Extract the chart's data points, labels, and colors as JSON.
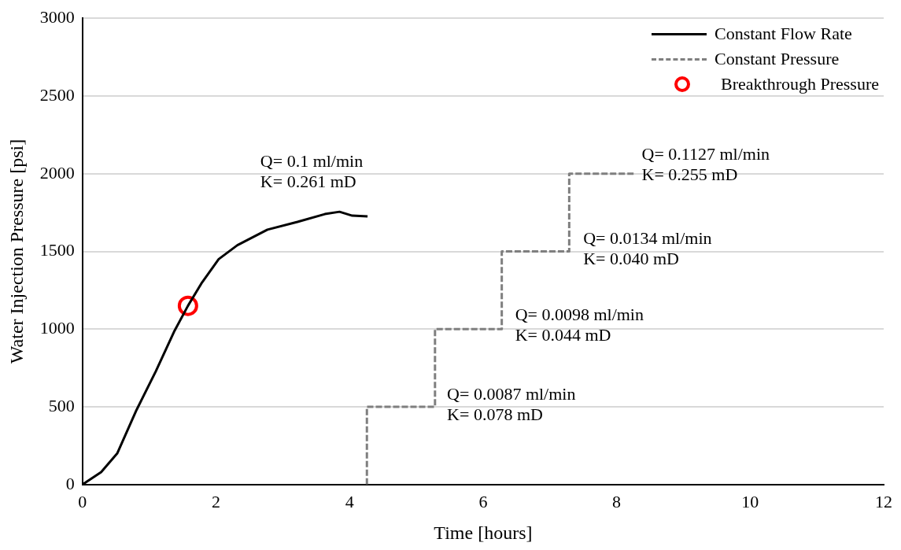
{
  "chart_data": {
    "type": "line",
    "xlabel": "Time [hours]",
    "ylabel": "Water Injection Pressure [psi]",
    "xlim": [
      0,
      12
    ],
    "xticks": [
      0,
      2,
      4,
      6,
      8,
      10,
      12
    ],
    "ylim": [
      0,
      3000
    ],
    "yticks": [
      0,
      500,
      1000,
      1500,
      2000,
      2500,
      3000
    ],
    "grid": "y",
    "legend": "top right",
    "marker": "none",
    "series": [
      {
        "name": "Constant Flow Rate",
        "color": "#000000",
        "line_style": "solid",
        "x": [
          0,
          0.28,
          0.52,
          0.81,
          1.1,
          1.38,
          1.58,
          1.79,
          2.04,
          2.32,
          2.77,
          3.22,
          3.63,
          3.85,
          4.04,
          4.27
        ],
        "values": [
          0,
          80,
          200,
          480,
          730,
          990,
          1150,
          1300,
          1450,
          1540,
          1640,
          1690,
          1740,
          1755,
          1730,
          1725
        ]
      },
      {
        "name": "Constant Pressure",
        "type": "line",
        "color": "#7f7f7f",
        "line_style": "dashed",
        "x": [
          4.26,
          4.26,
          5.28,
          5.28,
          6.28,
          6.28,
          7.29,
          7.29,
          8.27
        ],
        "values": [
          0,
          500,
          500,
          1000,
          1000,
          1500,
          1500,
          2000,
          2000
        ]
      },
      {
        "name": "Breakthrough Pressure",
        "type": "scatter",
        "color": "#ff0000",
        "marker": "circle",
        "x": [
          1.58
        ],
        "values": [
          1150
        ]
      }
    ],
    "annotations": [
      "Q= 0.1 ml/min\nK= 0.261 mD",
      "Q= 0.0087 ml/min\nK= 0.078 mD",
      "Q= 0.0098 ml/min\nK= 0.044 mD",
      "Q= 0.0134 ml/min\nK= 0.040 mD",
      "Q= 0.1127 ml/min\nK= 0.255 mD"
    ]
  }
}
